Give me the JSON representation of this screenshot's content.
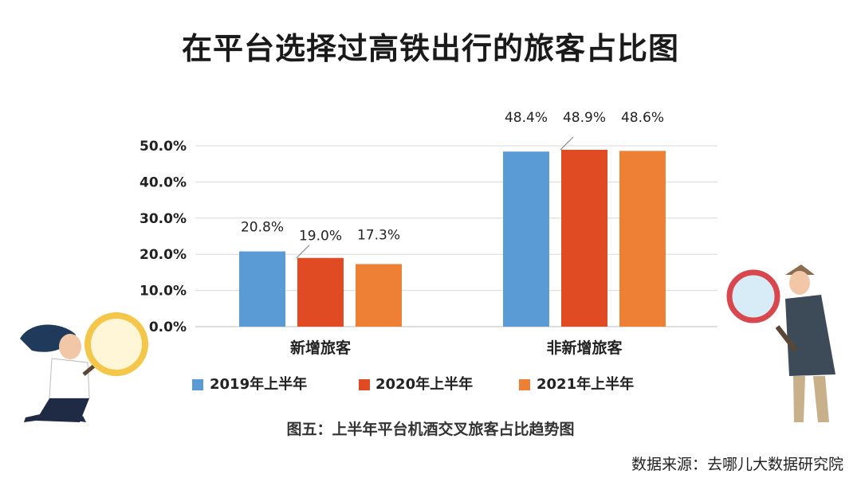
{
  "title": "在平台选择过高铁出行的旅客占比图",
  "caption": "图五：上半年平台机酒交叉旅客占比趋势图",
  "source": "数据来源：去哪儿大数据研究院",
  "chart_data": {
    "type": "bar",
    "categories": [
      "新增旅客",
      "非新增旅客"
    ],
    "series": [
      {
        "name": "2019年上半年",
        "color": "#5b9bd5",
        "values": [
          20.8,
          48.4
        ],
        "labels": [
          "20.8%",
          "48.4%"
        ]
      },
      {
        "name": "2020年上半年",
        "color": "#e04b24",
        "values": [
          19.0,
          48.9
        ],
        "labels": [
          "19.0%",
          "48.9%"
        ]
      },
      {
        "name": "2021年上半年",
        "color": "#ee8035",
        "values": [
          17.3,
          48.6
        ],
        "labels": [
          "17.3%",
          "48.6%"
        ]
      }
    ],
    "yticks": [
      "0.0%",
      "10.0%",
      "20.0%",
      "30.0%",
      "40.0%",
      "50.0%"
    ],
    "ylim": [
      0,
      50
    ],
    "grid": true,
    "legend": "bottom"
  }
}
